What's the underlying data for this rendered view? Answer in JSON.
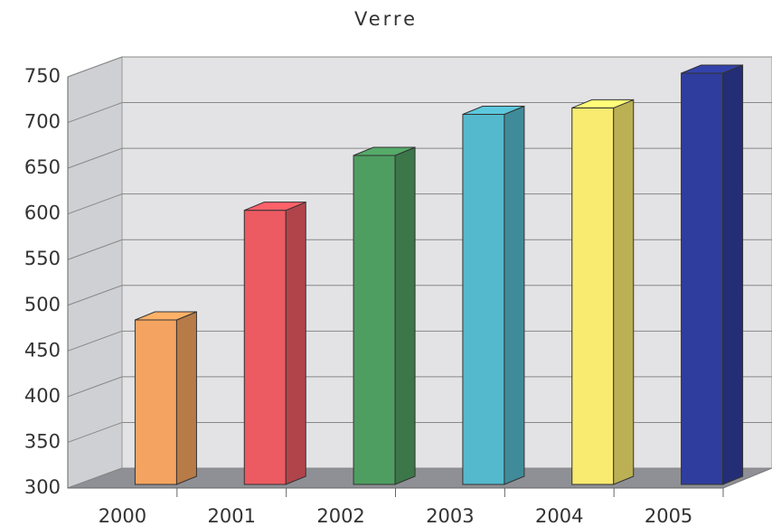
{
  "chart_data": {
    "type": "bar3d",
    "title": "Verre",
    "categories": [
      "2000",
      "2001",
      "2002",
      "2003",
      "2004",
      "2005"
    ],
    "values": [
      480,
      600,
      660,
      705,
      712,
      750
    ],
    "colors": [
      "#f4a460",
      "#ec5a62",
      "#4f9e61",
      "#55b9cd",
      "#f9ea70",
      "#2f3d9e"
    ],
    "ylim": [
      300,
      750
    ],
    "yticks": [
      300,
      350,
      400,
      450,
      500,
      550,
      600,
      650,
      700,
      750
    ],
    "grid": true
  }
}
